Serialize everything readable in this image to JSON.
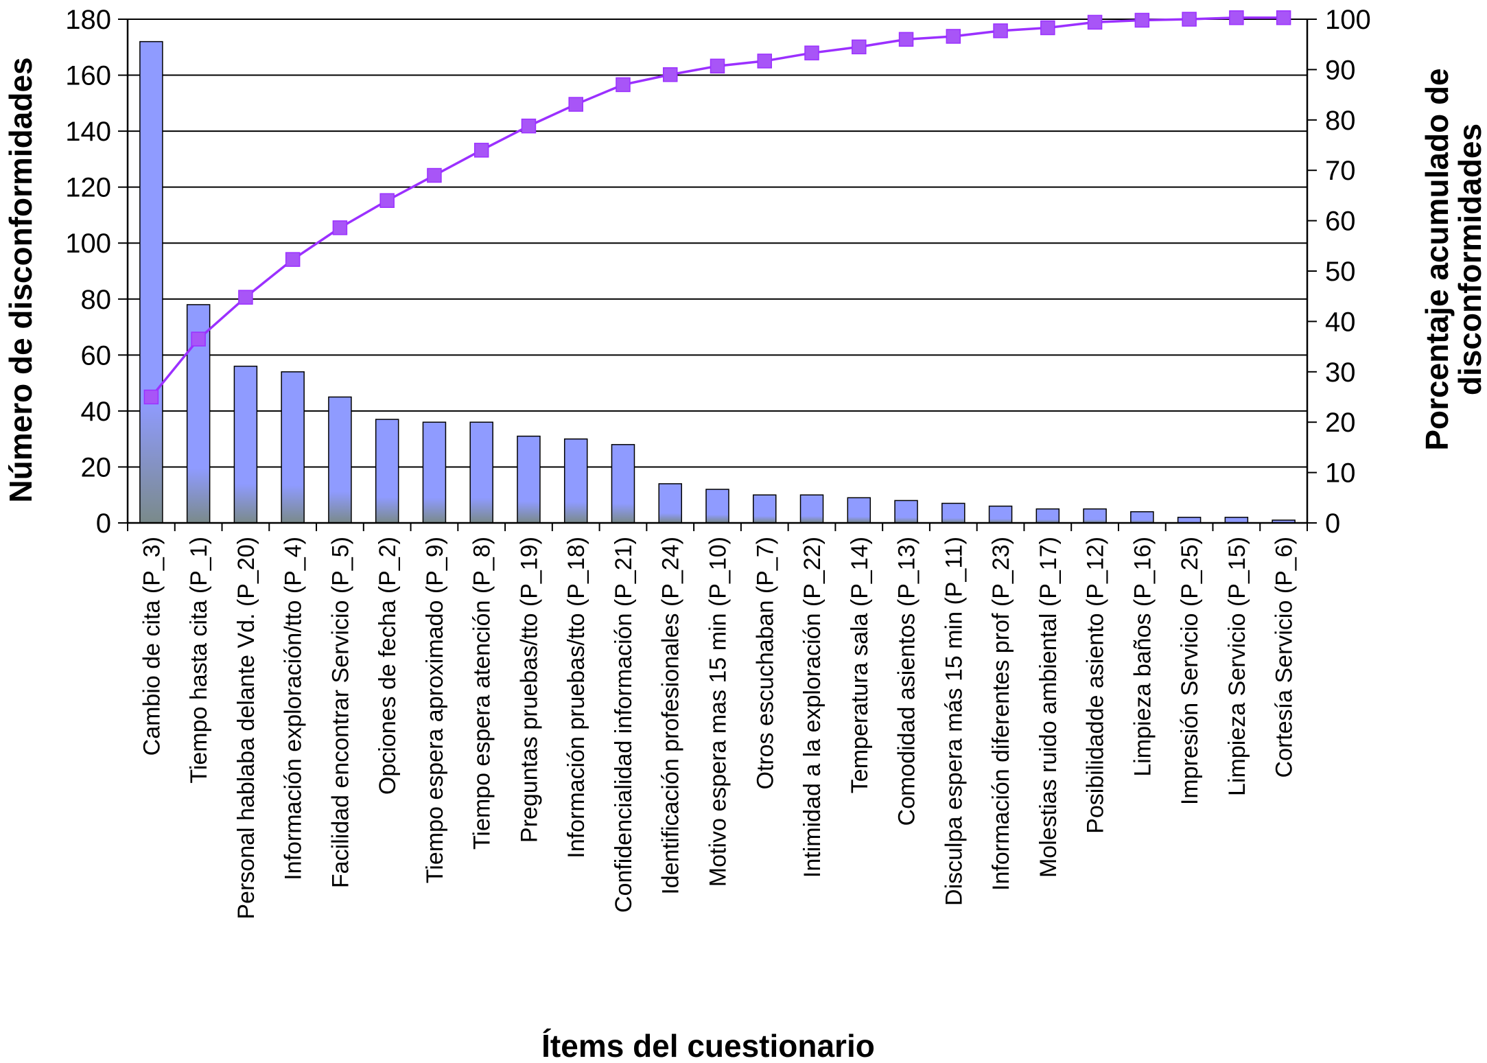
{
  "chart_data": {
    "type": "bar",
    "title": "",
    "xlabel": "Ítems del cuestionario",
    "ylabel": "Número de disconformidades",
    "y2label": [
      "Porcentaje acumulado de",
      "disconformidades"
    ],
    "ylim": [
      0,
      180
    ],
    "yticks": [
      0,
      20,
      40,
      60,
      80,
      100,
      120,
      140,
      160,
      180
    ],
    "y2lim": [
      0,
      100
    ],
    "y2ticks": [
      0,
      10,
      20,
      30,
      40,
      50,
      60,
      70,
      80,
      90,
      100
    ],
    "grid": true,
    "colors": {
      "bar_top": "#8f9bff",
      "bar_bottom": "#7a8a8a",
      "bar_stroke": "#000000",
      "line": "#9b30ff",
      "marker": "#a855f7"
    },
    "categories": [
      "Cambio de cita (P_3)",
      "Tiempo hasta cita (P_1)",
      "Personal hablaba delante Vd. (P_20)",
      "Información exploración/tto (P_4)",
      "Facilidad encontrar Servicio (P_5)",
      "Opciones de fecha (P_2)",
      "Tiempo espera aproximado (P_9)",
      "Tiempo espera atención (P_8)",
      "Preguntas pruebas/tto (P_19)",
      "Información pruebas/tto (P_18)",
      "Confidencialidad información (P_21)",
      "Identificación profesionales (P_24)",
      "Motivo espera mas 15 min (P_10)",
      "Otros escuchaban (P_7)",
      "Intimidad a la exploración (P_22)",
      "Temperatura sala (P_14)",
      "Comodidad asientos (P_13)",
      "Disculpa espera más 15 min (P_11)",
      "Información diferentes prof (P_23)",
      "Molestias ruido ambiental (P_17)",
      "Posibilidadde asiento (P_12)",
      "Limpieza baños (P_16)",
      "Impresión Servicio (P_25)",
      "Limpieza Servicio (P_15)",
      "Cortesía Servicio (P_6)"
    ],
    "series": [
      {
        "values": [
          172,
          78,
          56,
          54,
          45,
          37,
          36,
          36,
          31,
          30,
          28,
          14,
          12,
          10,
          10,
          9,
          8,
          7,
          6,
          5,
          5,
          4,
          2,
          2,
          1
        ]
      },
      {
        "axis": "right",
        "values": [
          25,
          36.5,
          44.8,
          52.3,
          58.6,
          64,
          69,
          74,
          78.8,
          83.1,
          87,
          89,
          90.7,
          91.7,
          93.3,
          94.5,
          96,
          96.6,
          97.7,
          98.3,
          99.4,
          99.8,
          100,
          100.3,
          100.3
        ]
      }
    ]
  }
}
